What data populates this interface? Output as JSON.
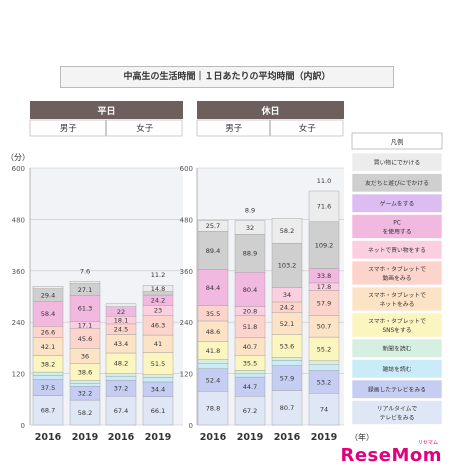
{
  "title": "中高生の生活時間｜１日あたりの平均時間（内訳）",
  "brand": {
    "name": "ReseMom",
    "kana": "リセマム"
  },
  "chart_data": {
    "type": "bar",
    "stacked": true,
    "unit_label": "（分）",
    "ylim": [
      0,
      600
    ],
    "yticks": [
      0,
      120,
      240,
      360,
      480,
      600
    ],
    "year_suffix": "（年）",
    "day_groups": [
      {
        "label": "平日",
        "genders": [
          "男子",
          "女子"
        ]
      },
      {
        "label": "休日",
        "genders": [
          "男子",
          "女子"
        ]
      }
    ],
    "categories": [
      "2016",
      "2019",
      "2016",
      "2019",
      "2016",
      "2019",
      "2016",
      "2019"
    ],
    "legend_title": "凡例",
    "series": [
      {
        "name": "リアルタイムで テレビをみる",
        "color": "#dfe6f6",
        "values": [
          68.7,
          58.2,
          67.4,
          66.1,
          78.8,
          67.2,
          80.7,
          74.0
        ]
      },
      {
        "name": "録画したテレビをみる",
        "color": "#c5cef2",
        "values": [
          37.5,
          32.2,
          37.2,
          34.4,
          52.4,
          44.7,
          57.9,
          53.2
        ]
      },
      {
        "name": "雑誌を読む",
        "color": "#c9ecf8",
        "values": [
          9.3,
          6.9,
          9.4,
          10.0,
          12.0,
          7.6,
          11.7,
          13.4
        ]
      },
      {
        "name": "新聞を読む",
        "color": "#d5efe0",
        "values": [
          8.0,
          7.2,
          5.9,
          7.0,
          9.3,
          7.8,
          7.0,
          9.5
        ]
      },
      {
        "name": "スマホ・タブレットで SNSをする",
        "color": "#fbf5bf",
        "values": [
          38.2,
          38.6,
          48.2,
          51.5,
          41.8,
          35.5,
          53.6,
          55.2
        ]
      },
      {
        "name": "スマホ・タブレットで ネットをみる",
        "color": "#fce3c6",
        "values": [
          42.1,
          36.0,
          43.4,
          41.0,
          48.6,
          40.7,
          52.1,
          50.7
        ]
      },
      {
        "name": "スマホ・タブレットで 動画をみる",
        "color": "#fcd4cc",
        "values": [
          26.6,
          45.6,
          24.5,
          46.3,
          35.5,
          51.8,
          24.2,
          57.9
        ]
      },
      {
        "name": "ネットで買い物をする",
        "color": "#fccfe0",
        "values": [
          0,
          17.1,
          18.1,
          23.0,
          0,
          20.8,
          34.0,
          17.8
        ]
      },
      {
        "name": "PC を使用する",
        "color": "#f2b9e0",
        "values": [
          58.4,
          61.3,
          22.0,
          24.2,
          84.4,
          80.4,
          0,
          33.8
        ]
      },
      {
        "name": "ゲームをする",
        "color": "#dcbdf2",
        "values": [
          0,
          0,
          0,
          0,
          0,
          0,
          0,
          0
        ]
      },
      {
        "name": "友だちと遊びにでかける",
        "color": "#cfcfcf",
        "values": [
          29.4,
          27.1,
          0,
          8.0,
          89.4,
          88.9,
          103.2,
          109.2
        ]
      },
      {
        "name": "買い物にでかける",
        "color": "#ececec",
        "values": [
          5.7,
          5.4,
          7.1,
          14.8,
          25.7,
          32.0,
          58.2,
          71.6
        ]
      }
    ],
    "top_labels": [
      {
        "bar": 1,
        "text": "7.6"
      },
      {
        "bar": 3,
        "text": "11.2"
      },
      {
        "bar": 5,
        "text": "8.9"
      },
      {
        "bar": 7,
        "text": "11.0"
      }
    ]
  }
}
